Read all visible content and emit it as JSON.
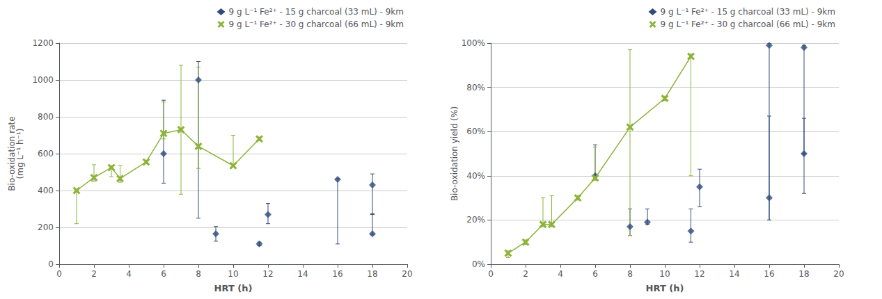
{
  "chart_data": [
    {
      "type": "scatter",
      "xlabel": "HRT (h)",
      "ylabel": "Bio-oxidation rate\n(mg L⁻¹ h⁻¹)",
      "xlim": [
        0,
        20
      ],
      "xticks": [
        0,
        2,
        4,
        6,
        8,
        10,
        12,
        14,
        16,
        18,
        20
      ],
      "ylim": [
        0,
        1200
      ],
      "yticks": [
        0,
        200,
        400,
        600,
        800,
        1000,
        1200
      ],
      "grid": "y",
      "legend": "upper right",
      "series": [
        {
          "name": "9 g L⁻¹ Fe²⁺ - 15 g charcoal (33 mL) - 9km",
          "type": "scatter",
          "marker": "diamond",
          "color": "#2E4B7A",
          "x": [
            6,
            8,
            9,
            11.5,
            12,
            16,
            18,
            18
          ],
          "values": [
            600,
            1000,
            165,
            110,
            270,
            460,
            165,
            430
          ],
          "yerr_low": [
            160,
            750,
            40,
            10,
            50,
            350,
            5,
            160
          ],
          "yerr_high": [
            290,
            100,
            40,
            10,
            60,
            5,
            110,
            60
          ]
        },
        {
          "name": "9 g L⁻¹ Fe²⁺ - 30 g charcoal (66 mL) - 9km",
          "type": "line",
          "marker": "x",
          "line_style": "solid",
          "color": "#8DB33A",
          "x": [
            1,
            2,
            3,
            3.5,
            5,
            6,
            7,
            8,
            10,
            11.5
          ],
          "values": [
            400,
            470,
            525,
            465,
            555,
            710,
            730,
            640,
            535,
            680
          ],
          "yerr_low": [
            180,
            20,
            50,
            20,
            10,
            30,
            350,
            120,
            5,
            10
          ],
          "yerr_high": [
            5,
            70,
            10,
            70,
            10,
            170,
            350,
            430,
            165,
            10
          ]
        }
      ]
    },
    {
      "type": "scatter",
      "xlabel": "HRT (h)",
      "ylabel": "Bio-oxidation yield (%)",
      "xlim": [
        0,
        20
      ],
      "xticks": [
        0,
        2,
        4,
        6,
        8,
        10,
        12,
        14,
        16,
        18,
        20
      ],
      "ylim": [
        0,
        1.0
      ],
      "yticks": [
        {
          "value": 0.0,
          "label": "0%"
        },
        {
          "value": 0.2,
          "label": "20%"
        },
        {
          "value": 0.4,
          "label": "40%"
        },
        {
          "value": 0.6,
          "label": "60%"
        },
        {
          "value": 0.8,
          "label": "80%"
        },
        {
          "value": 1.0,
          "label": "100%"
        }
      ],
      "grid": "y",
      "legend": "upper right",
      "series": [
        {
          "name": "9 g L⁻¹ Fe²⁺ - 15 g charcoal (33 mL) - 9km",
          "type": "scatter",
          "marker": "diamond",
          "color": "#2E4B7A",
          "x": [
            6,
            8,
            9,
            11.5,
            12,
            16,
            16,
            18,
            18
          ],
          "values": [
            0.4,
            0.17,
            0.19,
            0.15,
            0.35,
            0.99,
            0.3,
            0.98,
            0.5
          ],
          "yerr_low": [
            0.01,
            0.04,
            0.01,
            0.05,
            0.09,
            0.79,
            0.1,
            0.48,
            0.18
          ],
          "yerr_high": [
            0.14,
            0.08,
            0.06,
            0.1,
            0.08,
            0.01,
            0.37,
            0.01,
            0.16
          ]
        },
        {
          "name": "9 g L⁻¹ Fe²⁺ - 30 g charcoal (66 mL) - 9km",
          "type": "line",
          "marker": "x",
          "line_style": "solid",
          "color": "#8DB33A",
          "x": [
            1,
            2,
            3,
            3.5,
            5,
            6,
            8,
            10,
            11.5
          ],
          "values": [
            0.05,
            0.1,
            0.18,
            0.18,
            0.3,
            0.39,
            0.62,
            0.75,
            0.94
          ],
          "yerr_low": [
            0.02,
            0.01,
            0.01,
            0.01,
            0.01,
            0.01,
            0.49,
            0.01,
            0.54
          ],
          "yerr_high": [
            0.01,
            0.01,
            0.12,
            0.13,
            0.01,
            0.14,
            0.35,
            0.01,
            0.01
          ]
        }
      ]
    }
  ]
}
